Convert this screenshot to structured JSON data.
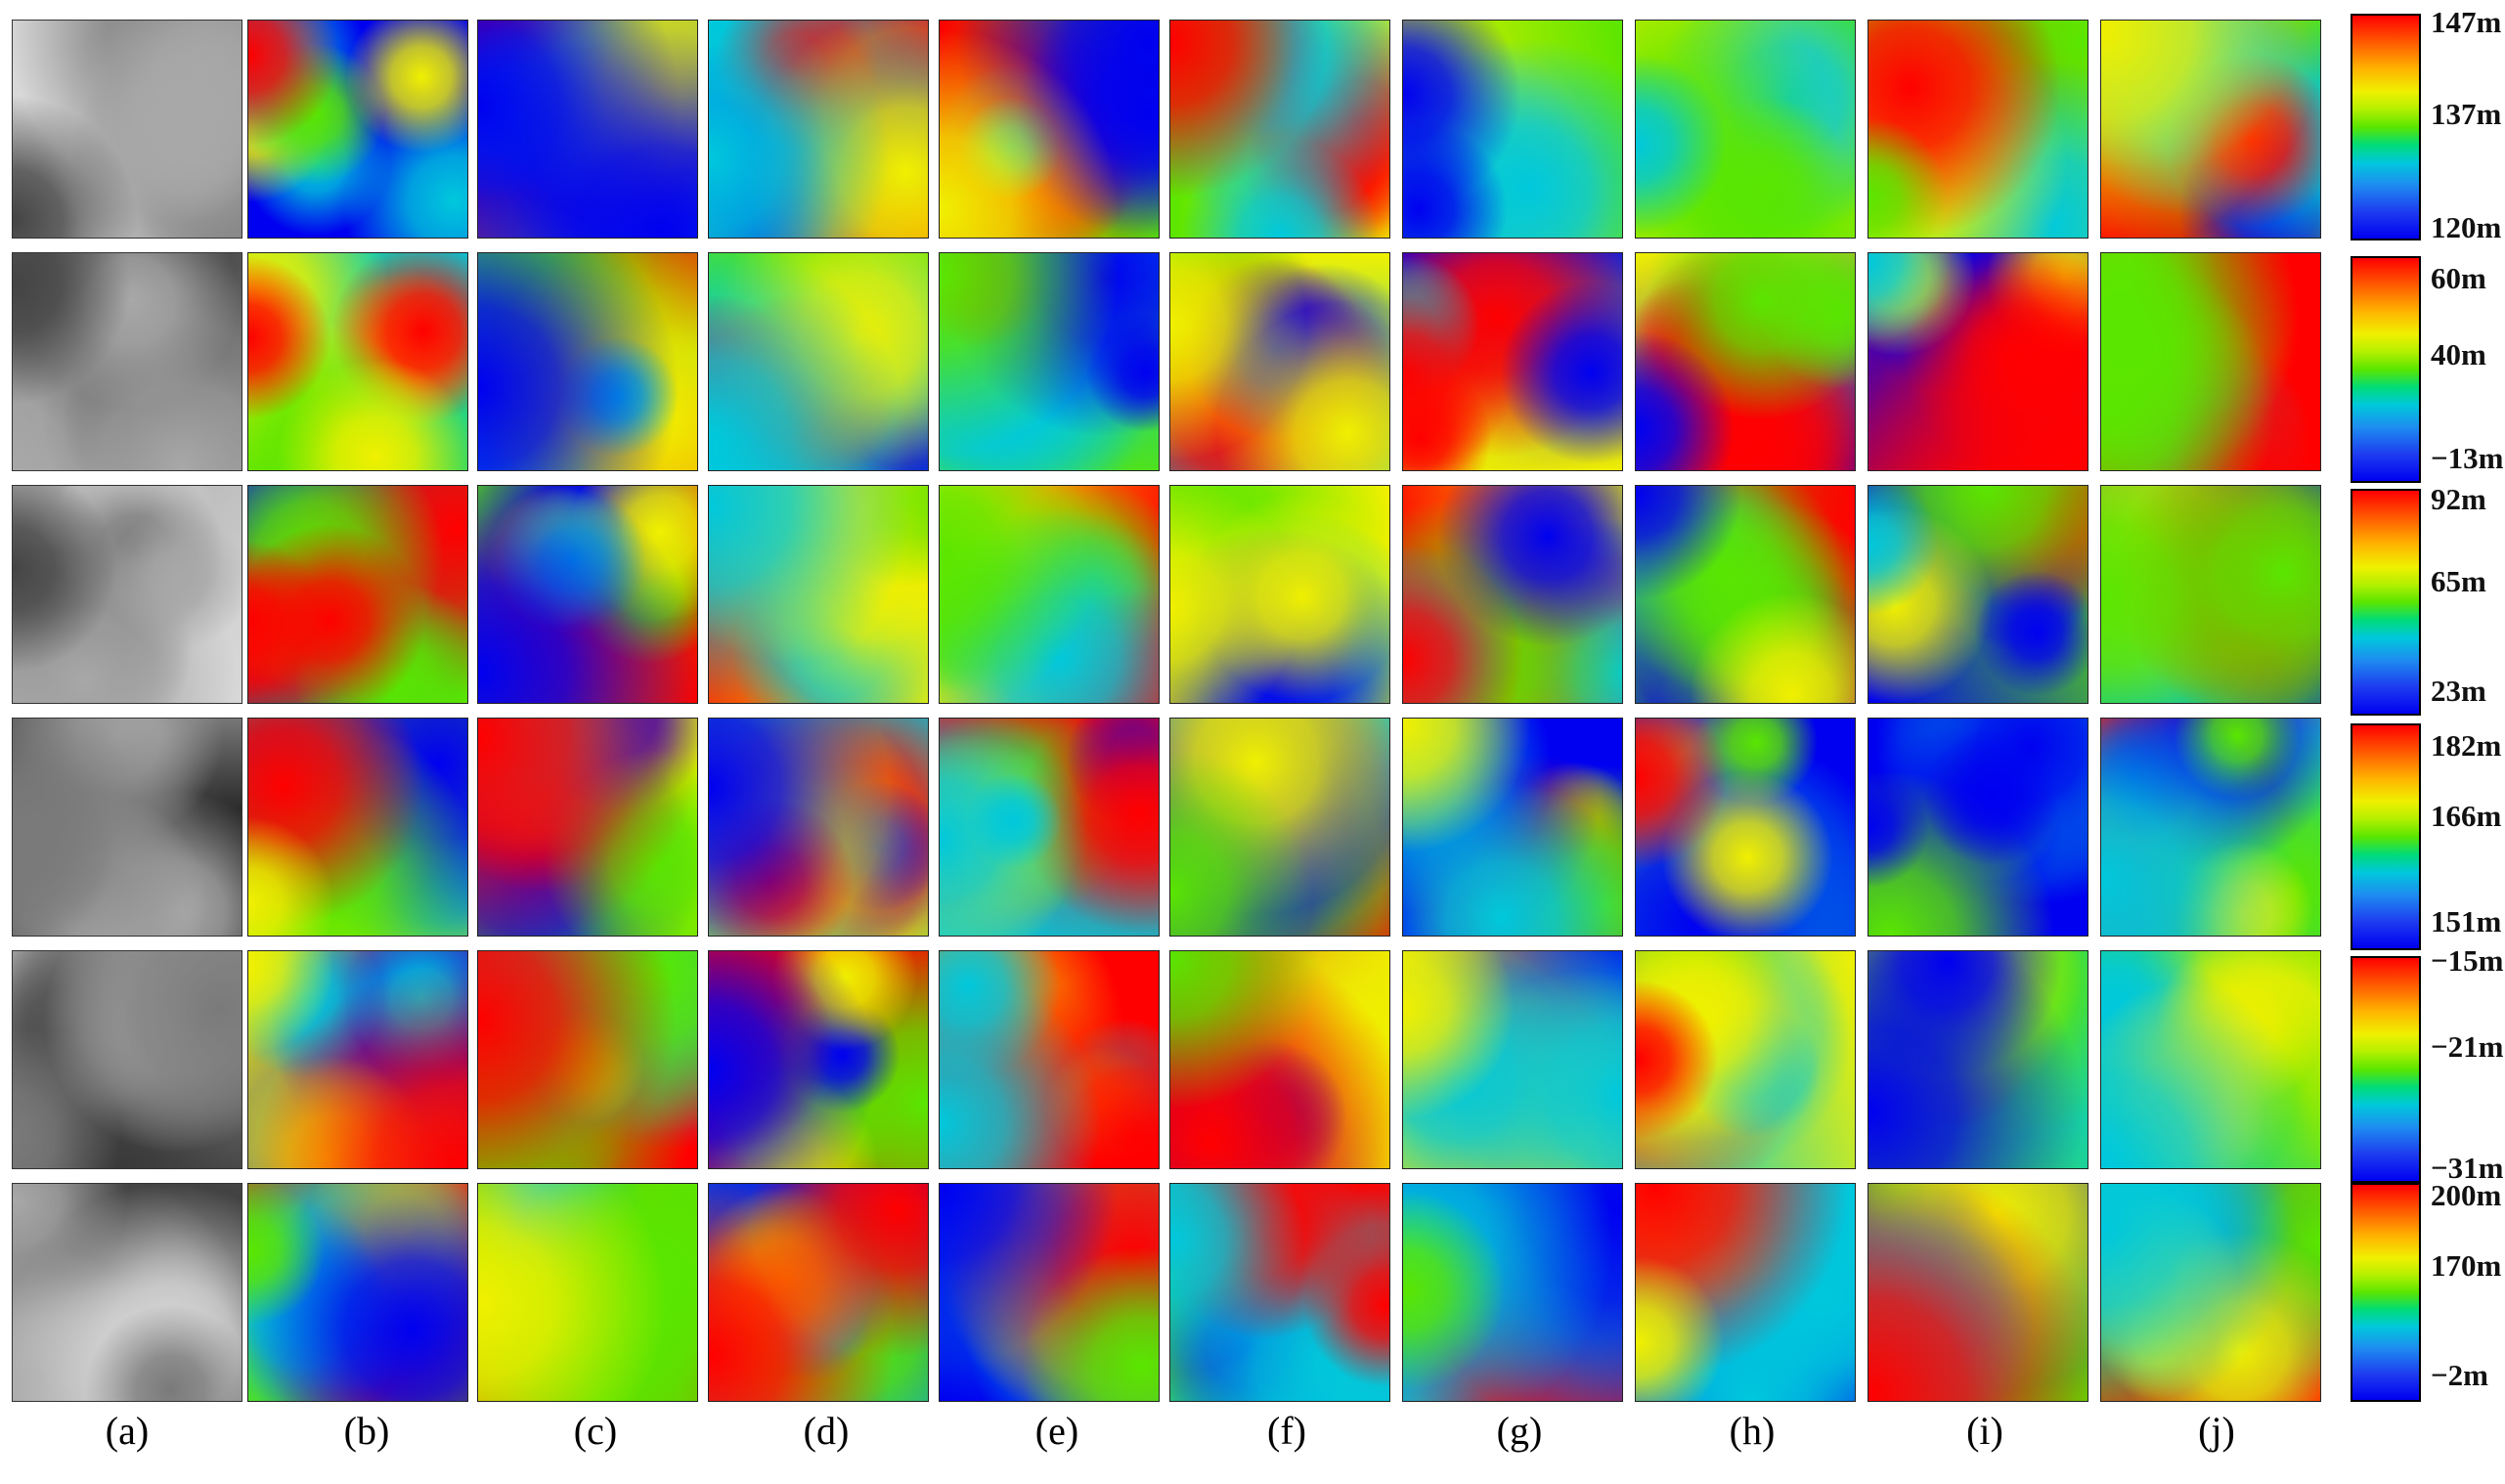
{
  "column_labels": [
    "(a)",
    "(b)",
    "(c)",
    "(d)",
    "(e)",
    "(f)",
    "(g)",
    "(h)",
    "(i)",
    "(j)"
  ],
  "colorbars": [
    {
      "max": "147m",
      "mid": "137m",
      "min": "120m"
    },
    {
      "max": "60m",
      "mid": "40m",
      "min": "−13m"
    },
    {
      "max": "92m",
      "mid": "65m",
      "min": "23m"
    },
    {
      "max": "182m",
      "mid": "166m",
      "min": "151m"
    },
    {
      "max": "−15m",
      "mid": "−21m",
      "min": "−31m"
    },
    {
      "max": "200m",
      "mid": "170m",
      "min": "−2m"
    }
  ],
  "colors": {
    "dem_high": "#ff0000",
    "dem_upper": "#f0f000",
    "dem_middle": "#5ae600",
    "dem_lower": "#00c8dc",
    "dem_low": "#0000f0",
    "panchromatic_dark": "#1a1a1a",
    "panchromatic_light": "#d8d8d8"
  }
}
